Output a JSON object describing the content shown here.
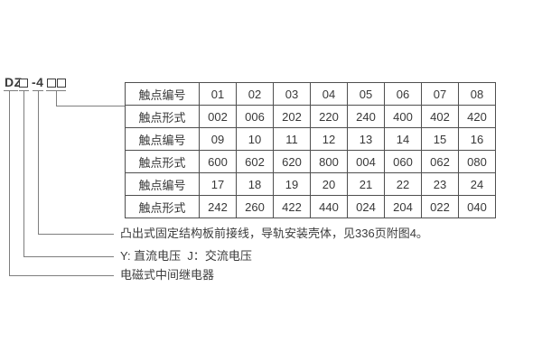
{
  "model": {
    "code": "DZ□-4□□",
    "prefix": "DZ",
    "dash_number": "-4"
  },
  "table": {
    "rows": [
      {
        "label": "触点编号",
        "values": [
          "01",
          "02",
          "03",
          "04",
          "05",
          "06",
          "07",
          "08"
        ]
      },
      {
        "label": "触点形式",
        "values": [
          "002",
          "006",
          "202",
          "220",
          "240",
          "400",
          "402",
          "420"
        ]
      },
      {
        "label": "触点编号",
        "values": [
          "09",
          "10",
          "11",
          "12",
          "13",
          "14",
          "15",
          "16"
        ]
      },
      {
        "label": "触点形式",
        "values": [
          "600",
          "602",
          "620",
          "800",
          "004",
          "060",
          "062",
          "080"
        ]
      },
      {
        "label": "触点编号",
        "values": [
          "17",
          "18",
          "19",
          "20",
          "21",
          "22",
          "23",
          "24"
        ]
      },
      {
        "label": "触点形式",
        "values": [
          "242",
          "260",
          "422",
          "440",
          "024",
          "204",
          "022",
          "040"
        ]
      }
    ]
  },
  "annotations": {
    "mounting": "凸出式固定结构板前接线，导轨安装壳体，见336页附图4。",
    "voltage": "Y: 直流电压  J：交流电压",
    "type": "电磁式中间继电器"
  },
  "colors": {
    "text": "#3c3c3c",
    "table_border": "#4f4f4f",
    "leader_line": "#7e7e7e",
    "background": "#ffffff"
  }
}
